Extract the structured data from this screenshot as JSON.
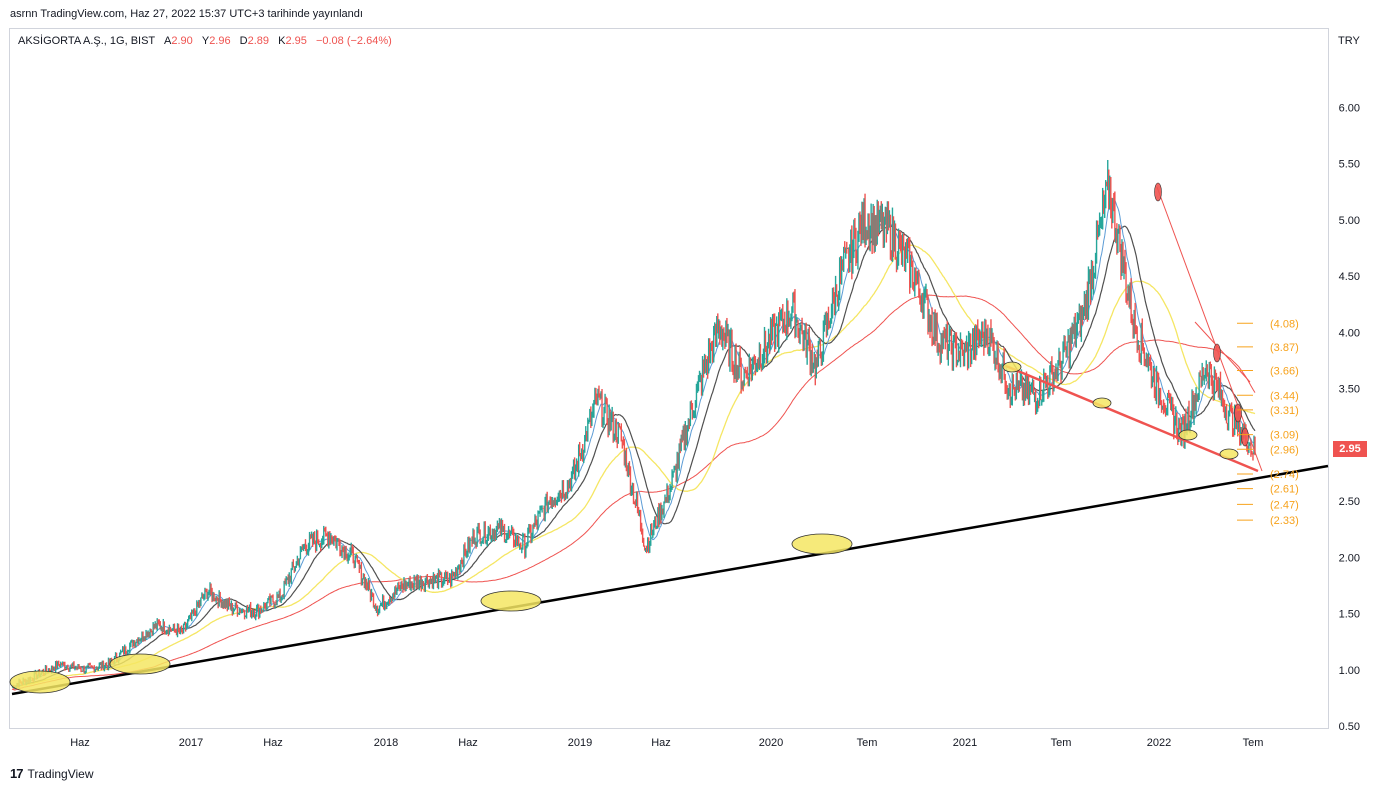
{
  "header": {
    "published": "asrnn TradingView.com, Haz 27, 2022 15:37 UTC+3 tarihinde yayınlandı"
  },
  "legend": {
    "symbol": "AKSİGORTA A.Ş., 1G, BIST",
    "open_label": "A",
    "open": "2.90",
    "high_label": "Y",
    "high": "2.96",
    "low_label": "D",
    "low": "2.89",
    "close_label": "K",
    "close": "2.95",
    "change": "−0.08 (−2.64%)"
  },
  "currency": "TRY",
  "last_price": "2.95",
  "footer": {
    "logo": "17",
    "brand": "TradingView"
  },
  "colors": {
    "up": "#26a69a",
    "down": "#ef5350",
    "ema_short": "#5b9bd5",
    "ema_mid": "#505050",
    "ema_yellow": "#f5e663",
    "ema_red": "#ef5350",
    "support": "#000000",
    "fib": "#f7a21b",
    "ellipse": "#f5e663"
  },
  "chart_data": {
    "type": "line",
    "title": "AKSİGORTA A.Ş., 1G, BIST",
    "y_axis": {
      "ticks": [
        "0.50",
        "1.00",
        "1.50",
        "2.00",
        "2.50",
        "3.00",
        "3.50",
        "4.00",
        "4.50",
        "5.00",
        "5.50",
        "6.00"
      ],
      "ylim": [
        0.45,
        6.55
      ]
    },
    "x_axis": {
      "ticks": [
        "Haz",
        "2017",
        "Haz",
        "2018",
        "Haz",
        "2019",
        "Haz",
        "2020",
        "Tem",
        "2021",
        "Tem",
        "2022",
        "Tem"
      ]
    },
    "series": [
      {
        "values": [
          0.85,
          0.95,
          1.05,
          1.0,
          1.05,
          1.25,
          1.4,
          1.33,
          1.7,
          1.55,
          1.52,
          1.65,
          2.1,
          2.2,
          2.0,
          1.55,
          1.75,
          1.8,
          1.8,
          2.2,
          2.25,
          2.1,
          2.5,
          2.7,
          3.4,
          3.05,
          2.1,
          2.6,
          3.4,
          4.05,
          3.6,
          3.9,
          4.2,
          3.7,
          4.5,
          5.0,
          4.9,
          4.5,
          3.95,
          3.8,
          4.0,
          3.5,
          3.45,
          3.7,
          4.2,
          5.3,
          4.1,
          3.5,
          3.1,
          3.7,
          3.25,
          2.95
        ]
      }
    ],
    "fib_levels": [
      "(4.08)",
      "(3.87)",
      "(3.66)",
      "(3.44)",
      "(3.31)",
      "(3.09)",
      "(2.96)",
      "(2.74)",
      "(2.61)",
      "(2.47)",
      "(2.33)"
    ],
    "fib_values": [
      4.08,
      3.87,
      3.66,
      3.44,
      3.31,
      3.09,
      2.96,
      2.74,
      2.61,
      2.47,
      2.33
    ],
    "grid": false
  }
}
